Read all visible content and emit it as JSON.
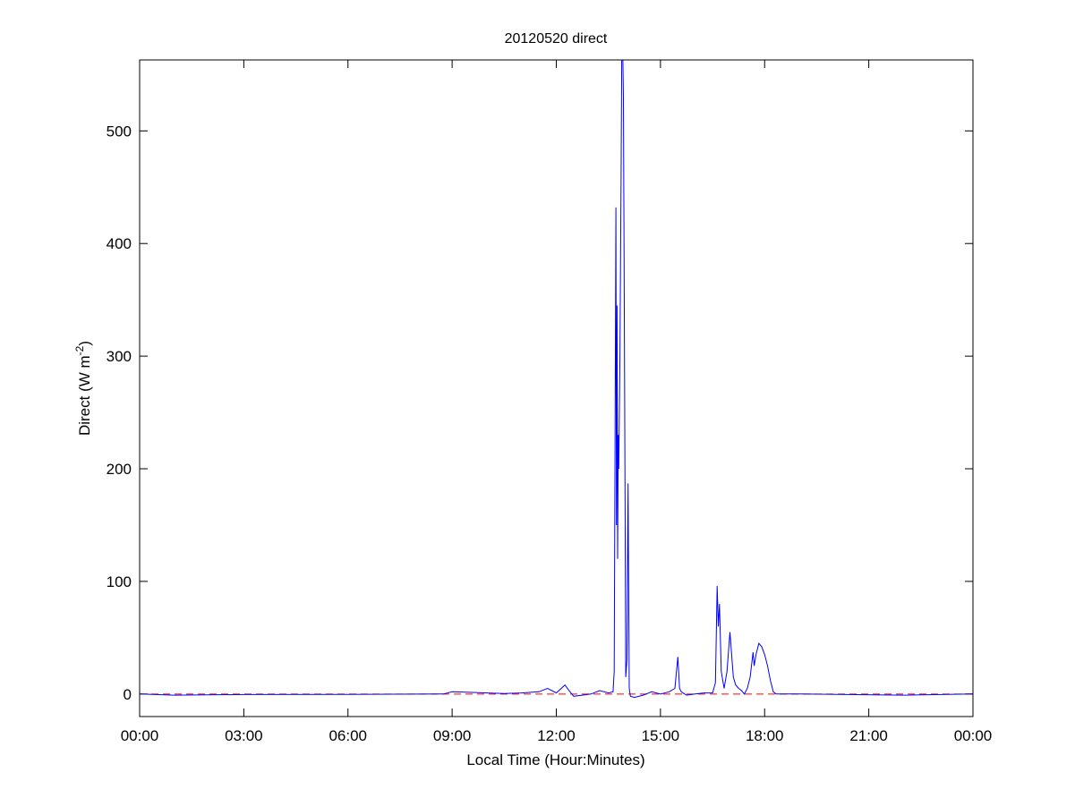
{
  "chart_data": {
    "type": "line",
    "title": "20120520 direct",
    "xlabel": "Local Time (Hour:Minutes)",
    "ylabel": "Direct (W m-2)",
    "ylabel_parts": {
      "main": "Direct (W m",
      "sup": "-2",
      "end": ")"
    },
    "xlim": [
      "00:00",
      "24:00"
    ],
    "ylim": [
      -20,
      563
    ],
    "x_ticks": [
      "00:00",
      "03:00",
      "06:00",
      "09:00",
      "12:00",
      "15:00",
      "18:00",
      "21:00",
      "00:00"
    ],
    "y_ticks": [
      0,
      100,
      200,
      300,
      400,
      500
    ],
    "grid": false,
    "reference_line": {
      "y": 0,
      "color": "#ff0000",
      "style": "dashed"
    },
    "series": [
      {
        "color": "#0000ff",
        "x": [
          "00:00",
          "01:00",
          "03:00",
          "06:00",
          "08:45",
          "09:00",
          "09:30",
          "10:00",
          "10:30",
          "11:00",
          "11:30",
          "11:45",
          "12:00",
          "12:15",
          "12:22",
          "12:30",
          "12:45",
          "13:00",
          "13:15",
          "13:30",
          "13:38",
          "13:40",
          "13:43",
          "13:44",
          "13:45",
          "13:46",
          "13:47",
          "13:48",
          "13:50",
          "13:52",
          "13:53",
          "13:55",
          "13:56",
          "13:58",
          "14:00",
          "14:02",
          "14:04",
          "14:05",
          "14:06",
          "14:08",
          "14:15",
          "14:30",
          "14:45",
          "15:00",
          "15:15",
          "15:25",
          "15:30",
          "15:33",
          "15:36",
          "15:45",
          "16:00",
          "16:15",
          "16:30",
          "16:35",
          "16:38",
          "16:40",
          "16:42",
          "16:45",
          "16:50",
          "16:55",
          "17:00",
          "17:03",
          "17:06",
          "17:10",
          "17:15",
          "17:20",
          "17:25",
          "17:30",
          "17:35",
          "17:40",
          "17:42",
          "17:45",
          "17:50",
          "17:55",
          "18:00",
          "18:05",
          "18:10",
          "18:15",
          "18:20",
          "19:00",
          "22:00",
          "24:00"
        ],
        "y": [
          0,
          -1,
          -0.5,
          -0.3,
          0,
          2,
          1.5,
          1,
          0.5,
          1,
          2,
          5,
          1,
          8,
          3,
          -2,
          -1,
          0,
          3,
          1,
          2,
          20,
          432,
          150,
          345,
          120,
          230,
          200,
          300,
          460,
          563,
          563,
          530,
          280,
          15,
          30,
          187,
          100,
          5,
          -2,
          -3,
          -1,
          2,
          0,
          2,
          5,
          33,
          5,
          2,
          -1,
          0,
          1,
          1,
          10,
          96,
          60,
          80,
          20,
          5,
          20,
          55,
          35,
          15,
          8,
          5,
          3,
          0,
          5,
          15,
          37,
          25,
          35,
          45,
          42,
          35,
          25,
          12,
          2,
          0,
          0,
          -1,
          0
        ]
      }
    ]
  }
}
